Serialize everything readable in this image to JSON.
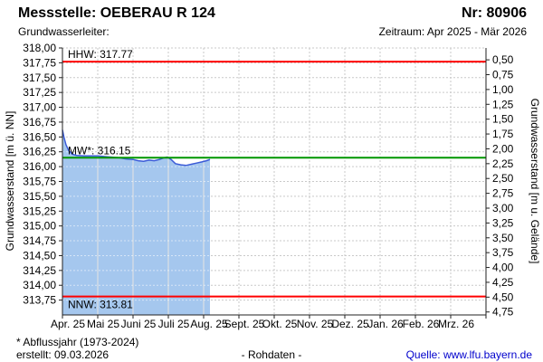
{
  "header": {
    "title": "Messstelle: OEBERAU R 124",
    "number": "Nr: 80906",
    "aquifer_label": "Grundwasserleiter:",
    "period": "Zeitraum: Apr 2025 - Mär 2026"
  },
  "footer": {
    "note": "* Abflussjahr (1973-2024)",
    "created": "erstellt: 09.03.2026",
    "center": "- Rohdaten -",
    "source": "Quelle: www.lfu.bayern.de"
  },
  "chart_data": {
    "type": "area",
    "y_left": {
      "label": "Grundwasserstand [m ü. NN]",
      "max": 318.0,
      "min": 313.5,
      "tick_step": 0.25,
      "ticks": [
        318.0,
        317.75,
        317.5,
        317.25,
        317.0,
        316.75,
        316.5,
        316.25,
        316.0,
        315.75,
        315.5,
        315.25,
        315.0,
        314.75,
        314.5,
        314.25,
        314.0,
        313.75
      ]
    },
    "y_right": {
      "label": "Grundwasserstand [m u. Gelände]",
      "ground_level": 318.3,
      "ticks": [
        0.5,
        0.75,
        1.0,
        1.25,
        1.5,
        1.75,
        2.0,
        2.25,
        2.5,
        2.75,
        3.0,
        3.25,
        3.5,
        3.75,
        4.0,
        4.25,
        4.5,
        4.75
      ]
    },
    "x": {
      "labels": [
        "Apr. 25",
        "Mai 25",
        "Juni 25",
        "Juli 25",
        "Aug. 25",
        "Sept. 25",
        "Okt. 25",
        "Nov. 25",
        "Dez. 25",
        "Jan. 26",
        "Feb. 26",
        "Mrz. 26"
      ]
    },
    "reference_lines": [
      {
        "name": "HHW",
        "label": "HHW: 317.77",
        "value": 317.77,
        "color": "#ff0000",
        "label_position": "above"
      },
      {
        "name": "MW",
        "label": "MW*: 316.15",
        "value": 316.15,
        "color": "#009600",
        "label_position": "above"
      },
      {
        "name": "NNW",
        "label": "NNW: 313.81",
        "value": 313.81,
        "color": "#ff0000",
        "label_position": "below"
      }
    ],
    "series": [
      {
        "name": "Grundwasserstand",
        "stroke": "#3b5bd7",
        "fill": "#a5c7ee",
        "points": [
          [
            0.0,
            316.62
          ],
          [
            0.04,
            316.5
          ],
          [
            0.1,
            316.37
          ],
          [
            0.18,
            316.27
          ],
          [
            0.28,
            316.21
          ],
          [
            0.4,
            316.19
          ],
          [
            0.6,
            316.18
          ],
          [
            0.8,
            316.18
          ],
          [
            1.0,
            316.18
          ],
          [
            1.2,
            316.17
          ],
          [
            1.4,
            316.16
          ],
          [
            1.6,
            316.15
          ],
          [
            1.8,
            316.13
          ],
          [
            2.0,
            316.12
          ],
          [
            2.15,
            316.1
          ],
          [
            2.3,
            316.09
          ],
          [
            2.45,
            316.11
          ],
          [
            2.6,
            316.1
          ],
          [
            2.75,
            316.12
          ],
          [
            2.88,
            316.15
          ],
          [
            2.97,
            316.16
          ],
          [
            3.08,
            316.12
          ],
          [
            3.2,
            316.05
          ],
          [
            3.35,
            316.03
          ],
          [
            3.5,
            316.02
          ],
          [
            3.65,
            316.04
          ],
          [
            3.8,
            316.06
          ],
          [
            3.95,
            316.08
          ],
          [
            4.08,
            316.1
          ],
          [
            4.18,
            316.12
          ]
        ]
      }
    ],
    "colors": {
      "grid": "#c9c9c9",
      "axis": "#222222",
      "hhw_nnw": "#ff0000",
      "mw": "#009600"
    },
    "legend_position": "none",
    "grid": true
  }
}
